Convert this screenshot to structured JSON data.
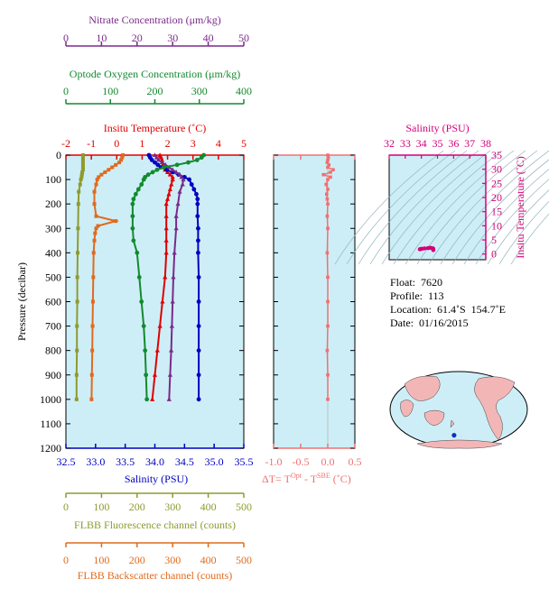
{
  "chart_data": [
    {
      "type": "line",
      "panel": "main",
      "ylabel": "Pressure (decibar)",
      "ylim": [
        1200,
        0
      ],
      "yticks": [
        0,
        100,
        200,
        300,
        400,
        500,
        600,
        700,
        800,
        900,
        1000,
        1100,
        1200
      ],
      "grid": false,
      "axes": {
        "nitrate": {
          "label": "Nitrate Concentration (μm/kg)",
          "range": [
            0,
            50
          ],
          "ticks": [
            0,
            10,
            20,
            30,
            40,
            50
          ],
          "color": "#7a2a8a"
        },
        "oxygen": {
          "label": "Optode Oxygen Concentration (μm/kg)",
          "range": [
            0,
            400
          ],
          "ticks": [
            0,
            100,
            200,
            300,
            400
          ],
          "color": "#138a2e"
        },
        "temperature": {
          "label": "Insitu Temperature (˚C)",
          "range": [
            -2,
            5
          ],
          "ticks": [
            -2,
            -1,
            0,
            1,
            2,
            3,
            4,
            5
          ],
          "color": "#e00000"
        },
        "salinity": {
          "label": "Salinity (PSU)",
          "range": [
            32.5,
            35.5
          ],
          "ticks": [
            32.5,
            33.0,
            33.5,
            34.0,
            34.5,
            35.0,
            35.5
          ],
          "color": "#0000c0"
        },
        "fluorescence": {
          "label": "FLBB Fluorescence channel (counts)",
          "range": [
            0,
            500
          ],
          "ticks": [
            0,
            100,
            200,
            300,
            400,
            500
          ],
          "color": "#8f9a2e"
        },
        "backscatter": {
          "label": "FLBB Backscatter channel (counts)",
          "range": [
            0,
            500
          ],
          "ticks": [
            0,
            100,
            200,
            300,
            400,
            500
          ],
          "color": "#e06a1e"
        }
      },
      "series": [
        {
          "axis": "temperature",
          "color": "#e00000",
          "marker": "triangle",
          "pressure": [
            0,
            5,
            10,
            20,
            30,
            40,
            50,
            60,
            70,
            80,
            90,
            100,
            120,
            140,
            160,
            180,
            200,
            250,
            300,
            350,
            400,
            500,
            600,
            700,
            800,
            900,
            1000
          ],
          "values": [
            1.7,
            1.72,
            1.75,
            1.78,
            1.8,
            1.82,
            1.85,
            1.9,
            2.0,
            2.1,
            2.2,
            2.2,
            2.15,
            2.1,
            2.05,
            2.0,
            1.95,
            1.95,
            1.95,
            1.95,
            1.95,
            1.9,
            1.8,
            1.7,
            1.6,
            1.5,
            1.4
          ]
        },
        {
          "axis": "salinity",
          "color": "#0000c0",
          "marker": "circle",
          "pressure": [
            0,
            10,
            20,
            30,
            40,
            50,
            60,
            70,
            80,
            90,
            100,
            120,
            140,
            160,
            180,
            200,
            250,
            300,
            350,
            400,
            500,
            600,
            700,
            800,
            900,
            1000
          ],
          "values": [
            33.9,
            33.92,
            33.95,
            34.0,
            34.05,
            34.1,
            34.2,
            34.3,
            34.4,
            34.5,
            34.58,
            34.62,
            34.66,
            34.7,
            34.72,
            34.72,
            34.72,
            34.73,
            34.73,
            34.73,
            34.74,
            34.74,
            34.74,
            34.74,
            34.74,
            34.74
          ]
        },
        {
          "axis": "nitrate",
          "color": "#7a2a8a",
          "marker": "triangle",
          "pressure": [
            0,
            10,
            20,
            30,
            40,
            50,
            60,
            70,
            80,
            90,
            100,
            120,
            150,
            200,
            250,
            300,
            400,
            500,
            600,
            700,
            800,
            900,
            1000
          ],
          "values": [
            25,
            25.5,
            26,
            27,
            28,
            29,
            30,
            31,
            32,
            32.5,
            33,
            32.8,
            32,
            31.5,
            31,
            31,
            30.5,
            30.2,
            30,
            29.8,
            29.6,
            29.3,
            29
          ]
        },
        {
          "axis": "oxygen",
          "color": "#138a2e",
          "marker": "circle",
          "pressure": [
            0,
            10,
            20,
            30,
            40,
            50,
            60,
            70,
            80,
            90,
            100,
            120,
            140,
            160,
            180,
            200,
            250,
            300,
            350,
            400,
            500,
            600,
            700,
            800,
            900,
            1000
          ],
          "values": [
            310,
            305,
            295,
            275,
            250,
            220,
            205,
            195,
            185,
            178,
            175,
            170,
            163,
            157,
            152,
            150,
            150,
            150,
            152,
            160,
            165,
            170,
            175,
            178,
            180,
            182
          ]
        },
        {
          "axis": "fluorescence",
          "color": "#8f9a2e",
          "marker": "square",
          "pressure": [
            0,
            10,
            20,
            30,
            40,
            50,
            60,
            70,
            80,
            90,
            100,
            120,
            150,
            200,
            300,
            400,
            500,
            600,
            700,
            800,
            900,
            1000
          ],
          "values": [
            48,
            48,
            48,
            48,
            48,
            48,
            48,
            46,
            45,
            44,
            42,
            40,
            36,
            35,
            34,
            33,
            32,
            32,
            31,
            31,
            30,
            30
          ]
        },
        {
          "axis": "backscatter",
          "color": "#e06a1e",
          "marker": "square",
          "pressure": [
            0,
            10,
            20,
            30,
            40,
            50,
            60,
            70,
            80,
            90,
            100,
            120,
            150,
            200,
            250,
            270,
            290,
            300,
            320,
            350,
            400,
            500,
            600,
            700,
            800,
            900,
            1000
          ],
          "values": [
            160,
            158,
            155,
            150,
            140,
            130,
            120,
            110,
            100,
            92,
            88,
            85,
            80,
            80,
            85,
            140,
            90,
            85,
            82,
            80,
            78,
            77,
            76,
            75,
            74,
            73,
            72
          ]
        }
      ]
    },
    {
      "type": "line",
      "panel": "delta-t",
      "xlabel": "ΔT= T^Opt - T^SBE (˚C)",
      "xlim": [
        -1.0,
        0.5
      ],
      "xticks": [
        -1.0,
        -0.5,
        0.0,
        0.5
      ],
      "xtick_labels": [
        "-1.0",
        "-0.5",
        "0.0",
        "0.5"
      ],
      "ylim": [
        1200,
        0
      ],
      "series": [
        {
          "color": "#f07070",
          "pressure": [
            0,
            10,
            20,
            30,
            40,
            50,
            60,
            70,
            80,
            90,
            100,
            120,
            140,
            160,
            180,
            200,
            250,
            300,
            400,
            500,
            600,
            700,
            800,
            900,
            1000
          ],
          "values": [
            0.0,
            0.01,
            0.0,
            -0.01,
            0.02,
            0.0,
            0.1,
            0.05,
            -0.08,
            0.05,
            0.0,
            -0.03,
            0.0,
            -0.02,
            -0.01,
            0.0,
            -0.01,
            0.0,
            -0.01,
            0.0,
            0.0,
            0.0,
            -0.01,
            0.0,
            0.0
          ]
        }
      ]
    },
    {
      "type": "scatter",
      "panel": "ts-diagram",
      "xlabel": "Salinity (PSU)",
      "ylabel": "Insitu Temperature (˚C)",
      "xlim": [
        32,
        38
      ],
      "ylim": [
        -2,
        35
      ],
      "xticks": [
        32,
        33,
        34,
        35,
        36,
        37,
        38
      ],
      "yticks": [
        0,
        5,
        10,
        15,
        20,
        25,
        30,
        35
      ],
      "color": "#d4007a",
      "points": [
        [
          33.9,
          1.7
        ],
        [
          33.95,
          1.8
        ],
        [
          34.05,
          1.9
        ],
        [
          34.2,
          2.0
        ],
        [
          34.4,
          2.1
        ],
        [
          34.58,
          2.2
        ],
        [
          34.66,
          2.1
        ],
        [
          34.72,
          1.95
        ],
        [
          34.73,
          1.95
        ],
        [
          34.74,
          1.9
        ],
        [
          34.74,
          1.7
        ],
        [
          34.74,
          1.5
        ],
        [
          34.74,
          1.4
        ],
        [
          34.5,
          2.2
        ],
        [
          34.0,
          1.8
        ]
      ]
    }
  ],
  "info": {
    "float": "Float:  7620",
    "profile": "Profile:  113",
    "location": "Location:  61.4˚S  154.7˚E",
    "date": "Date:  01/16/2015"
  },
  "map": {
    "marker_color": "#1030c0"
  }
}
